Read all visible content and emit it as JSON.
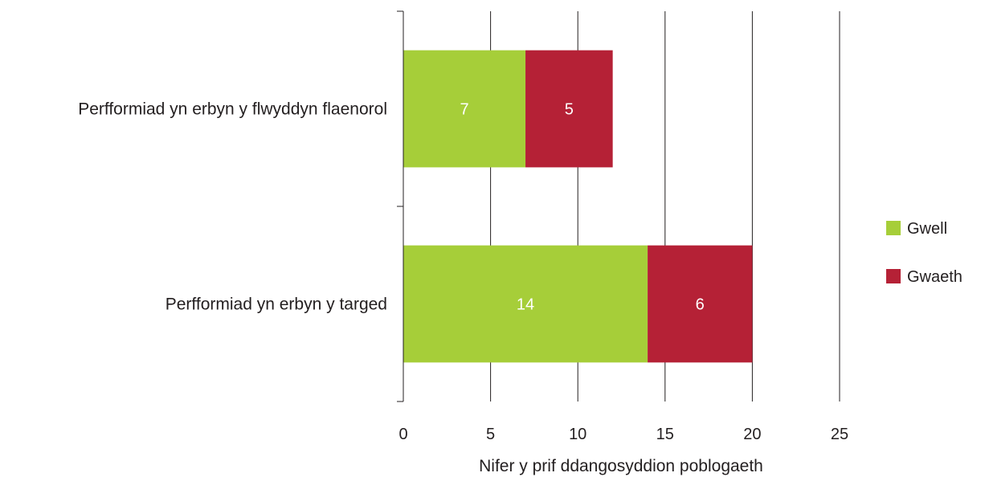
{
  "chart_data": {
    "type": "bar",
    "orientation": "horizontal",
    "stacked": true,
    "categories": [
      "Perfformiad yn erbyn y flwyddyn flaenorol",
      "Perfformiad yn erbyn y targed"
    ],
    "series": [
      {
        "name": "Gwell",
        "values": [
          7,
          14
        ],
        "color": "#a6ce39"
      },
      {
        "name": "Gwaeth",
        "values": [
          5,
          6
        ],
        "color": "#b52136"
      }
    ],
    "xlabel": "Nifer y prif ddangosyddion poblogaeth",
    "ylabel": "",
    "xlim": [
      0,
      25
    ],
    "xticks": [
      "0",
      "5",
      "10",
      "15",
      "20",
      "25"
    ],
    "grid": true,
    "legend_position": "right",
    "data_labels": true
  }
}
